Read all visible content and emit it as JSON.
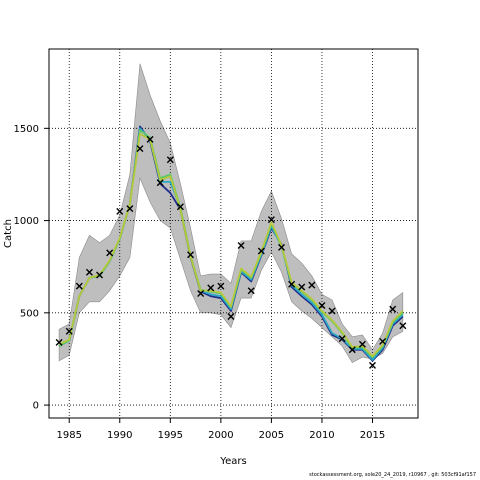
{
  "chart_data": {
    "type": "line",
    "xlabel": "Years",
    "ylabel": "Catch",
    "xlim": [
      1983,
      2019.5
    ],
    "ylim": [
      -70,
      1930
    ],
    "x_ticks": [
      1985,
      1990,
      1995,
      2000,
      2005,
      2010,
      2015
    ],
    "y_ticks": [
      0,
      500,
      1000,
      1500
    ],
    "grid": "dotted",
    "band_color": "#bebebe",
    "series_colors": [
      "#1f2d8a",
      "#2aa8c4",
      "#5cc86a",
      "#b5c93a"
    ],
    "years": [
      1984,
      1985,
      1986,
      1987,
      1988,
      1989,
      1990,
      1991,
      1992,
      1993,
      1994,
      1995,
      1996,
      1997,
      1998,
      1999,
      2000,
      2001,
      2002,
      2003,
      2004,
      2005,
      2006,
      2007,
      2008,
      2009,
      2010,
      2011,
      2012,
      2013,
      2014,
      2015,
      2016,
      2017,
      2018
    ],
    "observed": [
      340,
      400,
      645,
      720,
      705,
      825,
      1050,
      1065,
      1390,
      1440,
      1205,
      1330,
      1075,
      815,
      605,
      635,
      645,
      480,
      865,
      620,
      835,
      1005,
      855,
      655,
      640,
      650,
      540,
      510,
      360,
      300,
      330,
      215,
      345,
      520,
      430
    ],
    "band_lower": [
      240,
      270,
      500,
      560,
      560,
      620,
      700,
      800,
      1230,
      1100,
      1000,
      960,
      790,
      620,
      500,
      500,
      490,
      420,
      580,
      580,
      730,
      830,
      720,
      560,
      510,
      470,
      420,
      370,
      320,
      230,
      260,
      250,
      280,
      370,
      400
    ],
    "band_upper": [
      410,
      440,
      800,
      920,
      880,
      920,
      1030,
      1250,
      1850,
      1680,
      1540,
      1420,
      1200,
      960,
      700,
      710,
      710,
      660,
      890,
      890,
      1050,
      1160,
      1010,
      820,
      770,
      700,
      600,
      570,
      440,
      370,
      380,
      300,
      390,
      570,
      610
    ],
    "series": [
      {
        "values": [
          320,
          350,
          590,
          690,
          700,
          780,
          900,
          1090,
          1510,
          1430,
          1200,
          1150,
          1060,
          800,
          615,
          590,
          580,
          510,
          720,
          670,
          810,
          960,
          870,
          640,
          590,
          545,
          480,
          380,
          355,
          300,
          300,
          240,
          300,
          430,
          480
        ]
      },
      {
        "values": [
          320,
          350,
          590,
          690,
          700,
          780,
          900,
          1090,
          1500,
          1440,
          1210,
          1210,
          1070,
          805,
          620,
          600,
          590,
          520,
          725,
          680,
          815,
          970,
          860,
          650,
          600,
          555,
          490,
          390,
          360,
          305,
          305,
          245,
          310,
          440,
          490
        ]
      },
      {
        "values": [
          320,
          350,
          590,
          690,
          700,
          780,
          900,
          1090,
          1490,
          1450,
          1230,
          1250,
          1070,
          810,
          625,
          615,
          605,
          530,
          735,
          690,
          825,
          985,
          860,
          660,
          615,
          570,
          505,
          455,
          390,
          310,
          315,
          260,
          320,
          450,
          500
        ]
      },
      {
        "values": [
          330,
          355,
          590,
          690,
          705,
          785,
          905,
          1090,
          1470,
          1440,
          1220,
          1240,
          1060,
          805,
          620,
          620,
          610,
          535,
          740,
          695,
          830,
          990,
          865,
          665,
          620,
          575,
          510,
          460,
          395,
          315,
          320,
          265,
          325,
          455,
          510
        ]
      }
    ]
  },
  "footer": {
    "text": "stockassessment.org,  sole20_24_2019,  r10967 ,  git:  503cf91af157"
  }
}
